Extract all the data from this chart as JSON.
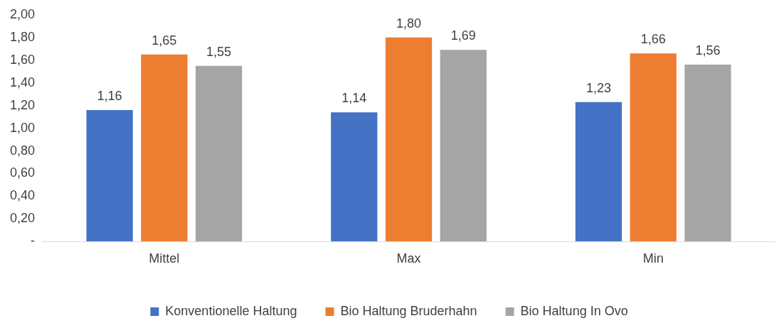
{
  "chart_data": {
    "type": "bar",
    "categories": [
      "Mittel",
      "Max",
      "Min"
    ],
    "series": [
      {
        "name": "Konventionelle Haltung",
        "color": "#4472c4",
        "values": [
          1.16,
          1.14,
          1.23
        ],
        "value_labels": [
          "1,16",
          "1,14",
          "1,23"
        ]
      },
      {
        "name": "Bio Haltung Bruderhahn",
        "color": "#ed7d31",
        "values": [
          1.65,
          1.8,
          1.66
        ],
        "value_labels": [
          "1,65",
          "1,80",
          "1,66"
        ]
      },
      {
        "name": "Bio Haltung In Ovo",
        "color": "#a5a5a5",
        "values": [
          1.55,
          1.69,
          1.56
        ],
        "value_labels": [
          "1,55",
          "1,69",
          "1,56"
        ]
      }
    ],
    "ylim": [
      0,
      2
    ],
    "yticks": [
      {
        "value": 0,
        "label": "-"
      },
      {
        "value": 0.2,
        "label": "0,20"
      },
      {
        "value": 0.4,
        "label": "0,40"
      },
      {
        "value": 0.6,
        "label": "0,60"
      },
      {
        "value": 0.8,
        "label": "0,80"
      },
      {
        "value": 1,
        "label": "1,00"
      },
      {
        "value": 1.2,
        "label": "1,20"
      },
      {
        "value": 1.4,
        "label": "1,40"
      },
      {
        "value": 1.6,
        "label": "1,60"
      },
      {
        "value": 1.8,
        "label": "1,80"
      },
      {
        "value": 2,
        "label": "2,00"
      }
    ],
    "grid": false,
    "legend": "bottom"
  }
}
